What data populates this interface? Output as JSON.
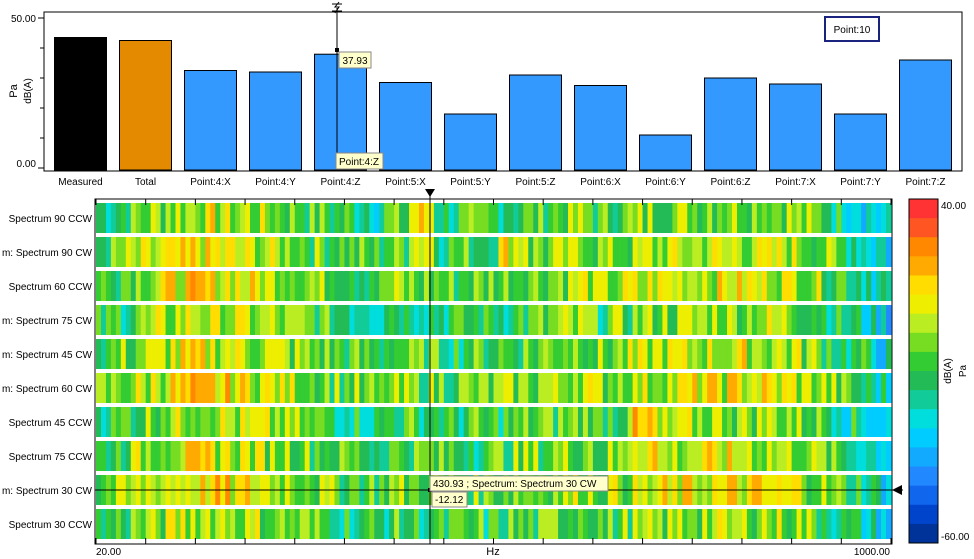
{
  "chart_data": [
    {
      "type": "bar",
      "ytick_labels": [
        "50.00",
        "0.00"
      ],
      "ylabel_unit": "Pa",
      "ylabel_weighting": "dB(A)",
      "ylim": [
        0,
        50
      ],
      "categories": [
        "Measured",
        "Total",
        "Point:4:X",
        "Point:4:Y",
        "Point:4:Z",
        "Point:5:X",
        "Point:5:Y",
        "Point:5:Z",
        "Point:6:X",
        "Point:6:Y",
        "Point:6:Z",
        "Point:7:X",
        "Point:7:Y",
        "Point:7:Z"
      ],
      "values": [
        43.5,
        42.5,
        32.5,
        32,
        37.93,
        28.5,
        18,
        31,
        27.5,
        11,
        30,
        28,
        18,
        36
      ],
      "bar_colors": [
        "#000000",
        "#e38a00",
        "#3399ff",
        "#3399ff",
        "#3399ff",
        "#3399ff",
        "#3399ff",
        "#3399ff",
        "#3399ff",
        "#3399ff",
        "#3399ff",
        "#3399ff",
        "#3399ff",
        "#3399ff"
      ],
      "cursor_value_label": "37.93",
      "cursor_category_label": "Point:4:Z",
      "selection_box_label": "Point:10"
    },
    {
      "type": "heatmap",
      "xlabel": "Hz",
      "xtick_labels": [
        "20.00",
        "1000.00"
      ],
      "xlim": [
        20,
        1000
      ],
      "rows": [
        "Spectrum 90 CCW",
        "m: Spectrum 90 CW",
        "Spectrum 60 CCW",
        "m: Spectrum 75 CW",
        "m: Spectrum 45 CW",
        "m: Spectrum 60 CW",
        "Spectrum 45 CCW",
        "Spectrum 75 CCW",
        "m: Spectrum 30 CW",
        "Spectrum 30 CCW"
      ],
      "colorbar": {
        "min_label": "-60.00",
        "max_label": "40.00",
        "range": [
          -60,
          40
        ],
        "unit_weighting": "dB(A)",
        "unit": "Pa",
        "colors": [
          "#003399",
          "#0044cc",
          "#1166ee",
          "#2288ff",
          "#11aaff",
          "#00ccff",
          "#00dddd",
          "#11cc99",
          "#22bb55",
          "#33cc33",
          "#77dd22",
          "#bbee22",
          "#eeee00",
          "#ffdd00",
          "#ffaa00",
          "#ff8800",
          "#ff5522",
          "#ff3333"
        ]
      },
      "cursor_readout": "430.93 ; Spectrum: Spectrum 30 CW",
      "cursor_value": "-12.12"
    }
  ]
}
